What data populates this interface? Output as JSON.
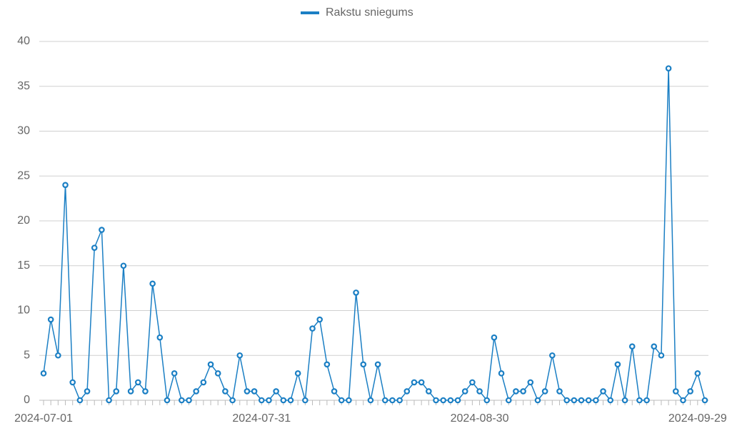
{
  "chart_data": {
    "type": "line",
    "categories": [
      "2024-07-01",
      null,
      null,
      null,
      null,
      null,
      null,
      null,
      null,
      null,
      null,
      null,
      null,
      null,
      null,
      null,
      null,
      null,
      null,
      null,
      null,
      null,
      null,
      null,
      null,
      null,
      null,
      null,
      null,
      null,
      "2024-07-31",
      null,
      null,
      null,
      null,
      null,
      null,
      null,
      null,
      null,
      null,
      null,
      null,
      null,
      null,
      null,
      null,
      null,
      null,
      null,
      null,
      null,
      null,
      null,
      null,
      null,
      null,
      null,
      null,
      null,
      "2024-08-30",
      null,
      null,
      null,
      null,
      null,
      null,
      null,
      null,
      null,
      null,
      null,
      null,
      null,
      null,
      null,
      null,
      null,
      null,
      null,
      null,
      null,
      null,
      null,
      null,
      null,
      null,
      null,
      null,
      null,
      "2024-09-29",
      null
    ],
    "series": [
      {
        "name": "Rakstu sniegums",
        "color": "#1b7fc4",
        "values": [
          3,
          9,
          5,
          24,
          2,
          0,
          1,
          17,
          19,
          0,
          1,
          15,
          1,
          2,
          1,
          13,
          7,
          0,
          3,
          0,
          0,
          1,
          2,
          4,
          3,
          1,
          0,
          5,
          1,
          1,
          0,
          0,
          1,
          0,
          0,
          3,
          0,
          8,
          9,
          4,
          1,
          0,
          0,
          12,
          4,
          0,
          4,
          0,
          0,
          0,
          1,
          2,
          2,
          1,
          0,
          0,
          0,
          0,
          1,
          2,
          1,
          0,
          7,
          3,
          0,
          1,
          1,
          2,
          0,
          1,
          5,
          1,
          0,
          0,
          0,
          0,
          0,
          1,
          0,
          4,
          0,
          6,
          0,
          0,
          6,
          5,
          37,
          1,
          0,
          1,
          3,
          0
        ]
      }
    ],
    "ylim": [
      0,
      40
    ],
    "yticks": [
      0,
      5,
      10,
      15,
      20,
      25,
      30,
      35,
      40
    ],
    "grid": true,
    "legend": "top"
  }
}
